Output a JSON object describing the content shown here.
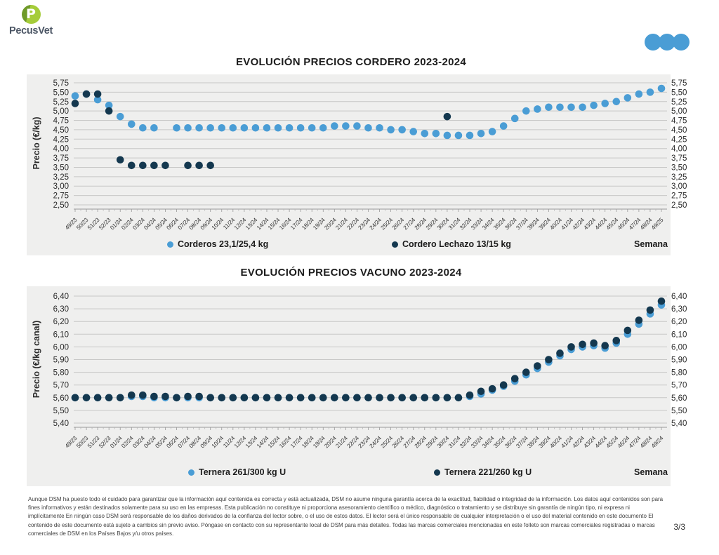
{
  "header": {
    "brand": "PecusVet",
    "monogram": "P",
    "logo_green_dark": "#6f9a28",
    "logo_green_light": "#a5cc3a",
    "brand_color": "#4d5766",
    "dots_color": "#4a9dd5"
  },
  "chart_data": [
    {
      "type": "scatter",
      "title": "EVOLUCIÓN PRECIOS CORDERO 2023-2024",
      "ylabel": "Precio (€/kg)",
      "xlabel": "Semana",
      "ymin": 2.5,
      "ymax": 5.75,
      "ystep": 0.25,
      "grid": true,
      "legend_position": "bottom",
      "categories": [
        "49/23",
        "50/23",
        "51/23",
        "52/23",
        "01/24",
        "02/24",
        "03/24",
        "04/24",
        "05/24",
        "06/24",
        "07/24",
        "08/24",
        "09/24",
        "10/24",
        "11/24",
        "12/24",
        "13/24",
        "14/24",
        "15/24",
        "16/24",
        "17/24",
        "18/24",
        "19/24",
        "20/24",
        "21/24",
        "22/24",
        "23/24",
        "24/24",
        "25/24",
        "26/24",
        "27/24",
        "28/24",
        "29/24",
        "30/24",
        "31/24",
        "32/24",
        "33/24",
        "34/24",
        "35/24",
        "36/24",
        "37/24",
        "38/24",
        "39/24",
        "40/24",
        "41/24",
        "42/24",
        "43/24",
        "44/24",
        "45/24",
        "46/24",
        "47/24",
        "48/24",
        "49/25"
      ],
      "series": [
        {
          "name": "Corderos 23,1/25,4 kg",
          "color": "#4a9dd5",
          "values": [
            5.4,
            5.45,
            5.3,
            5.15,
            4.85,
            4.65,
            4.55,
            4.55,
            null,
            4.55,
            4.55,
            4.55,
            4.55,
            4.55,
            4.55,
            4.55,
            4.55,
            4.55,
            4.55,
            4.55,
            4.55,
            4.55,
            4.55,
            4.6,
            4.6,
            4.6,
            4.55,
            4.55,
            4.5,
            4.5,
            4.45,
            4.4,
            4.4,
            4.35,
            4.35,
            4.35,
            4.4,
            4.45,
            4.6,
            4.8,
            5.0,
            5.05,
            5.1,
            5.1,
            5.1,
            5.1,
            5.15,
            5.2,
            5.25,
            5.35,
            5.45,
            5.5,
            5.6
          ]
        },
        {
          "name": "Cordero Lechazo 13/15 kg",
          "color": "#14384f",
          "values": [
            5.2,
            5.45,
            5.45,
            5.0,
            3.7,
            3.55,
            3.55,
            3.55,
            3.55,
            null,
            3.55,
            3.55,
            3.55,
            null,
            null,
            null,
            null,
            null,
            null,
            null,
            null,
            null,
            null,
            null,
            null,
            null,
            null,
            null,
            null,
            null,
            null,
            null,
            null,
            4.85,
            null,
            null,
            null,
            null,
            null,
            null,
            null,
            null,
            null,
            null,
            null,
            null,
            null,
            null,
            null,
            null,
            null,
            null,
            null
          ]
        }
      ]
    },
    {
      "type": "scatter",
      "title": "EVOLUCIÓN PRECIOS VACUNO 2023-2024",
      "ylabel": "Precio (€/kg canal)",
      "xlabel": "Semana",
      "ymin": 5.4,
      "ymax": 6.4,
      "ystep": 0.1,
      "grid": true,
      "legend_position": "bottom",
      "categories": [
        "49/23",
        "50/23",
        "51/23",
        "52/23",
        "01/24",
        "02/24",
        "03/24",
        "04/24",
        "05/24",
        "06/24",
        "07/24",
        "08/24",
        "09/24",
        "10/24",
        "11/24",
        "12/24",
        "13/24",
        "14/24",
        "15/24",
        "16/24",
        "17/24",
        "18/24",
        "19/24",
        "20/24",
        "21/24",
        "22/24",
        "23/24",
        "24/24",
        "25/24",
        "26/24",
        "27/24",
        "28/24",
        "29/24",
        "30/24",
        "31/24",
        "32/24",
        "33/24",
        "34/24",
        "35/24",
        "36/24",
        "37/24",
        "38/24",
        "39/24",
        "40/24",
        "41/24",
        "42/24",
        "43/24",
        "44/24",
        "45/24",
        "46/24",
        "47/24",
        "48/24",
        "49/24"
      ],
      "series": [
        {
          "name": "Ternera 261/300 kg U",
          "color": "#4a9dd5",
          "values": [
            5.6,
            5.6,
            5.6,
            5.6,
            5.6,
            5.61,
            5.61,
            5.6,
            5.6,
            5.6,
            5.6,
            5.6,
            5.6,
            5.6,
            5.6,
            5.6,
            5.6,
            5.6,
            5.6,
            5.6,
            5.6,
            5.6,
            5.6,
            5.6,
            5.6,
            5.6,
            5.6,
            5.6,
            5.6,
            5.6,
            5.6,
            5.6,
            5.6,
            5.6,
            5.6,
            5.61,
            5.63,
            5.66,
            5.69,
            5.73,
            5.78,
            5.83,
            5.88,
            5.93,
            5.98,
            6.0,
            6.01,
            5.99,
            6.03,
            6.1,
            6.18,
            6.26,
            6.33
          ]
        },
        {
          "name": "Ternera 221/260 kg U",
          "color": "#14384f",
          "values": [
            5.6,
            5.6,
            5.6,
            5.6,
            5.6,
            5.62,
            5.62,
            5.61,
            5.61,
            5.6,
            5.61,
            5.61,
            5.6,
            5.6,
            5.6,
            5.6,
            5.6,
            5.6,
            5.6,
            5.6,
            5.6,
            5.6,
            5.6,
            5.6,
            5.6,
            5.6,
            5.6,
            5.6,
            5.6,
            5.6,
            5.6,
            5.6,
            5.6,
            5.6,
            5.6,
            5.62,
            5.65,
            5.67,
            5.7,
            5.75,
            5.8,
            5.85,
            5.9,
            5.95,
            6.0,
            6.02,
            6.03,
            6.01,
            6.05,
            6.13,
            6.21,
            6.29,
            6.36
          ]
        }
      ]
    }
  ],
  "footer": {
    "disclaimer": "Aunque DSM ha puesto todo el cuidado para garantizar que la información aquí contenida es correcta y está actualizada, DSM no asume ninguna garantía acerca de la exactitud, fiabilidad o integridad de la información. Los datos aquí contenidos son para fines informativos y están destinados solamente para su uso en las empresas. Esta publicación no constituye ni proporciona asesoramiento científico o médico, diagnóstico o tratamiento y se distribuye sin garantía de ningún tipo, ni expresa ni implícitamente En ningún caso DSM será responsable de los daños derivados de la confianza del lector sobre, o el uso de estos datos. El lector será el único responsable de cualquier interpretación o el uso del material contenido en este documento El contenido de este documento está sujeto a cambios sin previo aviso. Póngase en contacto con su representante local de DSM para más detalles. Todas las marcas comerciales mencionadas en este folleto son marcas comerciales registradas o marcas comerciales de DSM en los Países Bajos y/u otros países.",
    "page": "3/3"
  }
}
